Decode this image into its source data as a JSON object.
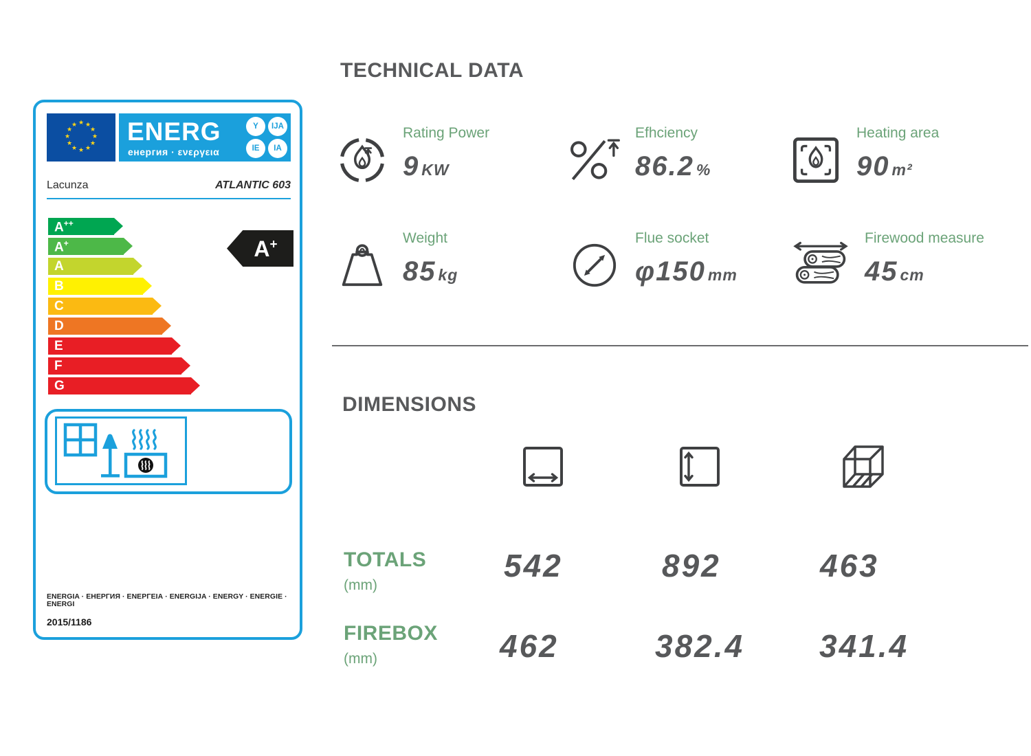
{
  "energy_label": {
    "eu_logo": {
      "energ_text": "ENERG",
      "sub_text": "енергия · ενεργεια",
      "badges": [
        "Y",
        "IJA",
        "IE",
        "IA"
      ]
    },
    "brand": "Lacunza",
    "model": "ATLANTIC 603",
    "scale": [
      {
        "grade": "A",
        "sup": "++",
        "color": "#00a651"
      },
      {
        "grade": "A",
        "sup": "+",
        "color": "#4db848"
      },
      {
        "grade": "A",
        "sup": "",
        "color": "#c3d52d"
      },
      {
        "grade": "B",
        "sup": "",
        "color": "#fff101"
      },
      {
        "grade": "C",
        "sup": "",
        "color": "#fbba12"
      },
      {
        "grade": "D",
        "sup": "",
        "color": "#ee7623"
      },
      {
        "grade": "E",
        "sup": "",
        "color": "#e81e25"
      },
      {
        "grade": "F",
        "sup": "",
        "color": "#e81e25"
      },
      {
        "grade": "G",
        "sup": "",
        "color": "#e81e25"
      }
    ],
    "rating": {
      "grade": "A",
      "sup": "+",
      "badge_color": "#1d1d1b"
    },
    "footer_languages": "ENERGIA · ЕНЕРГИЯ · ΕΝΕΡΓΕΙΑ · ENERGIJA · ENERGY · ENERGIE · ENERGI",
    "regulation": "2015/1186",
    "accent_blue": "#1ba0dc",
    "flag_blue": "#0b4ea2",
    "star_yellow": "#ffd617"
  },
  "technical_data": {
    "title": "TECHNICAL DATA",
    "label_color": "#6ba378",
    "value_color": "#57585a",
    "specs": [
      {
        "label": "Rating Power",
        "value": "9",
        "unit": "KW",
        "icon": "flame-gauge-icon"
      },
      {
        "label": "Efhciency",
        "value": "86.2",
        "unit": "%",
        "icon": "percent-up-icon"
      },
      {
        "label": "Heating area",
        "value": "90",
        "unit": "m²",
        "icon": "flame-square-icon"
      },
      {
        "label": "Weight",
        "value": "85",
        "unit": "kg",
        "icon": "weight-icon"
      },
      {
        "label": "Flue socket",
        "value": "φ150",
        "unit": "mm",
        "icon": "pipe-diameter-icon"
      },
      {
        "label": "Firewood measure",
        "value": "45",
        "unit": "cm",
        "icon": "firewood-icon"
      }
    ]
  },
  "dimensions": {
    "title": "DIMENSIONS",
    "columns": [
      "width",
      "height",
      "depth"
    ],
    "rows": [
      {
        "label": "TOTALS",
        "unit": "(mm)",
        "values": [
          "542",
          "892",
          "463"
        ]
      },
      {
        "label": "FIREBOX",
        "unit": "(mm)",
        "values": [
          "462",
          "382.4",
          "341.4"
        ]
      }
    ]
  }
}
